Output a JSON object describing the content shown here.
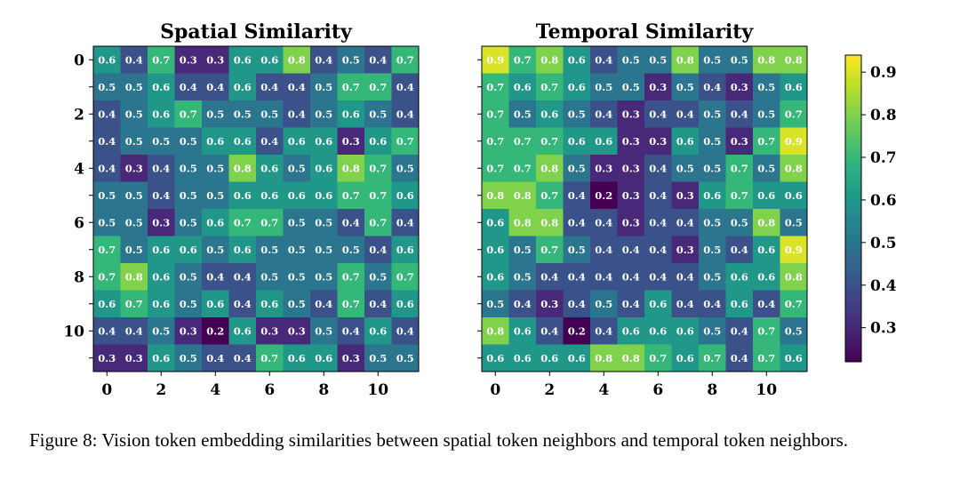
{
  "caption": "Figure 8: Vision token embedding similarities between spatial token neighbors and temporal token neighbors.",
  "chart_data": [
    {
      "type": "heatmap",
      "title": "Spatial Similarity",
      "x_ticks": [
        0,
        2,
        4,
        6,
        8,
        10
      ],
      "y_ticks": [
        0,
        2,
        4,
        6,
        8,
        10
      ],
      "values": [
        [
          0.6,
          0.4,
          0.7,
          0.3,
          0.3,
          0.6,
          0.6,
          0.8,
          0.4,
          0.5,
          0.4,
          0.7
        ],
        [
          0.5,
          0.5,
          0.6,
          0.4,
          0.4,
          0.6,
          0.4,
          0.4,
          0.5,
          0.7,
          0.7,
          0.4
        ],
        [
          0.4,
          0.5,
          0.6,
          0.7,
          0.5,
          0.5,
          0.5,
          0.4,
          0.5,
          0.6,
          0.5,
          0.4
        ],
        [
          0.4,
          0.5,
          0.5,
          0.5,
          0.6,
          0.6,
          0.4,
          0.6,
          0.6,
          0.3,
          0.6,
          0.7
        ],
        [
          0.4,
          0.3,
          0.4,
          0.5,
          0.5,
          0.8,
          0.6,
          0.5,
          0.6,
          0.8,
          0.7,
          0.5
        ],
        [
          0.5,
          0.5,
          0.4,
          0.5,
          0.5,
          0.6,
          0.6,
          0.6,
          0.6,
          0.7,
          0.7,
          0.6
        ],
        [
          0.5,
          0.5,
          0.3,
          0.5,
          0.6,
          0.7,
          0.7,
          0.5,
          0.5,
          0.4,
          0.7,
          0.4
        ],
        [
          0.7,
          0.5,
          0.6,
          0.6,
          0.5,
          0.6,
          0.5,
          0.5,
          0.5,
          0.5,
          0.4,
          0.6
        ],
        [
          0.7,
          0.8,
          0.6,
          0.5,
          0.4,
          0.4,
          0.5,
          0.5,
          0.5,
          0.7,
          0.5,
          0.7
        ],
        [
          0.6,
          0.7,
          0.6,
          0.5,
          0.6,
          0.4,
          0.6,
          0.5,
          0.4,
          0.7,
          0.4,
          0.6
        ],
        [
          0.4,
          0.4,
          0.5,
          0.3,
          0.2,
          0.6,
          0.3,
          0.3,
          0.5,
          0.4,
          0.6,
          0.4
        ],
        [
          0.3,
          0.3,
          0.6,
          0.5,
          0.4,
          0.4,
          0.7,
          0.6,
          0.6,
          0.3,
          0.5,
          0.5
        ]
      ]
    },
    {
      "type": "heatmap",
      "title": "Temporal Similarity",
      "x_ticks": [
        0,
        2,
        4,
        6,
        8,
        10
      ],
      "values": [
        [
          0.9,
          0.7,
          0.8,
          0.6,
          0.4,
          0.5,
          0.5,
          0.8,
          0.5,
          0.5,
          0.8,
          0.8
        ],
        [
          0.7,
          0.6,
          0.7,
          0.6,
          0.5,
          0.5,
          0.3,
          0.5,
          0.4,
          0.3,
          0.5,
          0.6
        ],
        [
          0.7,
          0.5,
          0.6,
          0.5,
          0.4,
          0.3,
          0.4,
          0.4,
          0.5,
          0.4,
          0.5,
          0.7
        ],
        [
          0.7,
          0.7,
          0.7,
          0.6,
          0.6,
          0.3,
          0.3,
          0.6,
          0.5,
          0.3,
          0.7,
          0.9
        ],
        [
          0.7,
          0.7,
          0.8,
          0.5,
          0.3,
          0.3,
          0.4,
          0.5,
          0.5,
          0.7,
          0.5,
          0.8
        ],
        [
          0.8,
          0.8,
          0.7,
          0.4,
          0.2,
          0.3,
          0.4,
          0.3,
          0.6,
          0.7,
          0.6,
          0.6
        ],
        [
          0.6,
          0.8,
          0.8,
          0.4,
          0.4,
          0.3,
          0.4,
          0.4,
          0.5,
          0.5,
          0.8,
          0.5
        ],
        [
          0.6,
          0.5,
          0.7,
          0.5,
          0.4,
          0.4,
          0.4,
          0.3,
          0.5,
          0.4,
          0.6,
          0.9
        ],
        [
          0.6,
          0.5,
          0.4,
          0.4,
          0.4,
          0.4,
          0.4,
          0.4,
          0.5,
          0.6,
          0.6,
          0.8
        ],
        [
          0.5,
          0.4,
          0.3,
          0.4,
          0.5,
          0.4,
          0.6,
          0.4,
          0.4,
          0.6,
          0.4,
          0.7
        ],
        [
          0.8,
          0.6,
          0.4,
          0.2,
          0.4,
          0.6,
          0.6,
          0.6,
          0.5,
          0.4,
          0.7,
          0.5
        ],
        [
          0.6,
          0.6,
          0.6,
          0.6,
          0.8,
          0.8,
          0.7,
          0.6,
          0.7,
          0.4,
          0.7,
          0.6
        ]
      ]
    }
  ],
  "colorbar": {
    "colormap": "viridis",
    "vmin": 0.22,
    "vmax": 0.94,
    "ticks": [
      0.3,
      0.4,
      0.5,
      0.6,
      0.7,
      0.8,
      0.9
    ]
  }
}
